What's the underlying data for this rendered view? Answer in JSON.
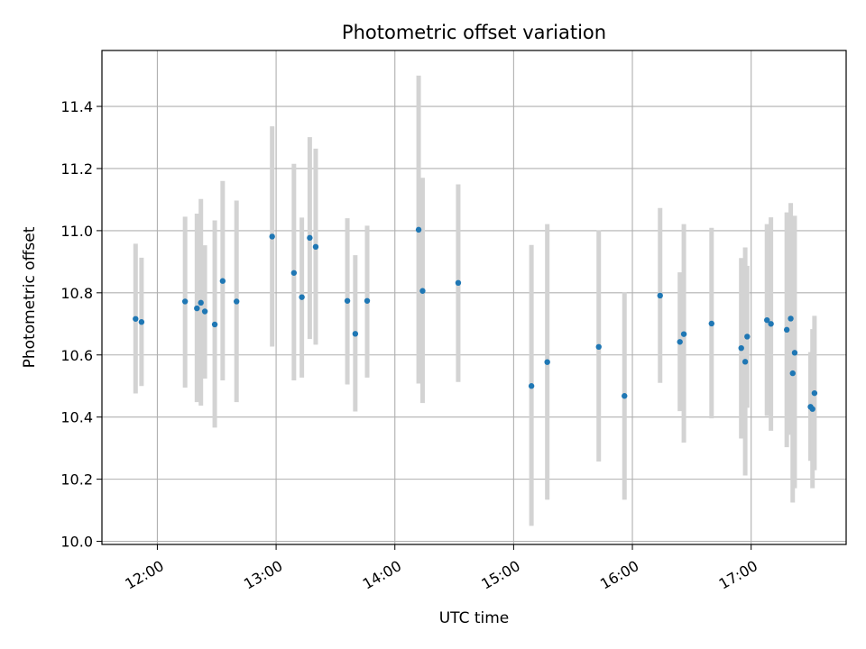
{
  "chart_data": {
    "type": "scatter",
    "title": "Photometric offset variation",
    "xlabel": "UTC time",
    "ylabel": "Photometric offset",
    "x_unit": "UTC time (HH:MM)",
    "xlim": [
      "11:32",
      "17:48"
    ],
    "ylim": [
      9.99,
      11.58
    ],
    "x_ticks": [
      "12:00",
      "13:00",
      "14:00",
      "15:00",
      "16:00",
      "17:00"
    ],
    "y_ticks": [
      10.0,
      10.2,
      10.4,
      10.6,
      10.8,
      11.0,
      11.2,
      11.4
    ],
    "grid": true,
    "legend": "none",
    "colors": {
      "points": "#1f77b4",
      "errorbars": "#d3d3d3",
      "grid": "#b0b0b0"
    },
    "points": [
      {
        "x": "11:49",
        "y": 10.716,
        "ylow": 10.476,
        "yhigh": 10.958
      },
      {
        "x": "11:52",
        "y": 10.706,
        "ylow": 10.5,
        "yhigh": 10.913
      },
      {
        "x": "12:14",
        "y": 10.772,
        "ylow": 10.495,
        "yhigh": 11.045
      },
      {
        "x": "12:20",
        "y": 10.75,
        "ylow": 10.448,
        "yhigh": 11.055
      },
      {
        "x": "12:22",
        "y": 10.768,
        "ylow": 10.437,
        "yhigh": 11.102
      },
      {
        "x": "12:24",
        "y": 10.74,
        "ylow": 10.524,
        "yhigh": 10.953
      },
      {
        "x": "12:29",
        "y": 10.698,
        "ylow": 10.366,
        "yhigh": 11.033
      },
      {
        "x": "12:33",
        "y": 10.838,
        "ylow": 10.518,
        "yhigh": 11.16
      },
      {
        "x": "12:40",
        "y": 10.772,
        "ylow": 10.448,
        "yhigh": 11.097
      },
      {
        "x": "12:58",
        "y": 10.981,
        "ylow": 10.627,
        "yhigh": 11.336
      },
      {
        "x": "13:09",
        "y": 10.864,
        "ylow": 10.518,
        "yhigh": 11.215
      },
      {
        "x": "13:13",
        "y": 10.786,
        "ylow": 10.527,
        "yhigh": 11.042
      },
      {
        "x": "13:17",
        "y": 10.977,
        "ylow": 10.651,
        "yhigh": 11.301
      },
      {
        "x": "13:20",
        "y": 10.948,
        "ylow": 10.633,
        "yhigh": 11.264
      },
      {
        "x": "13:36",
        "y": 10.774,
        "ylow": 10.505,
        "yhigh": 11.04
      },
      {
        "x": "13:40",
        "y": 10.668,
        "ylow": 10.418,
        "yhigh": 10.921
      },
      {
        "x": "13:46",
        "y": 10.774,
        "ylow": 10.527,
        "yhigh": 11.016
      },
      {
        "x": "14:12",
        "y": 11.003,
        "ylow": 10.508,
        "yhigh": 11.499
      },
      {
        "x": "14:14",
        "y": 10.806,
        "ylow": 10.445,
        "yhigh": 11.17
      },
      {
        "x": "14:32",
        "y": 10.832,
        "ylow": 10.513,
        "yhigh": 11.149
      },
      {
        "x": "15:09",
        "y": 10.5,
        "ylow": 10.05,
        "yhigh": 10.954
      },
      {
        "x": "15:17",
        "y": 10.577,
        "ylow": 10.134,
        "yhigh": 11.021
      },
      {
        "x": "15:43",
        "y": 10.626,
        "ylow": 10.257,
        "yhigh": 11.001
      },
      {
        "x": "15:56",
        "y": 10.468,
        "ylow": 10.134,
        "yhigh": 10.801
      },
      {
        "x": "16:14",
        "y": 10.791,
        "ylow": 10.51,
        "yhigh": 11.073
      },
      {
        "x": "16:24",
        "y": 10.642,
        "ylow": 10.419,
        "yhigh": 10.866
      },
      {
        "x": "16:26",
        "y": 10.667,
        "ylow": 10.318,
        "yhigh": 11.021
      },
      {
        "x": "16:40",
        "y": 10.701,
        "ylow": 10.396,
        "yhigh": 11.009
      },
      {
        "x": "16:55",
        "y": 10.622,
        "ylow": 10.331,
        "yhigh": 10.912
      },
      {
        "x": "16:57",
        "y": 10.578,
        "ylow": 10.212,
        "yhigh": 10.946
      },
      {
        "x": "16:58",
        "y": 10.659,
        "ylow": 10.43,
        "yhigh": 10.887
      },
      {
        "x": "17:08",
        "y": 10.712,
        "ylow": 10.404,
        "yhigh": 11.021
      },
      {
        "x": "17:10",
        "y": 10.7,
        "ylow": 10.356,
        "yhigh": 11.043
      },
      {
        "x": "17:18",
        "y": 10.681,
        "ylow": 10.303,
        "yhigh": 11.059
      },
      {
        "x": "17:20",
        "y": 10.717,
        "ylow": 10.343,
        "yhigh": 11.089
      },
      {
        "x": "17:21",
        "y": 10.541,
        "ylow": 10.125,
        "yhigh": 10.962
      },
      {
        "x": "17:22",
        "y": 10.607,
        "ylow": 10.171,
        "yhigh": 11.048
      },
      {
        "x": "17:30",
        "y": 10.433,
        "ylow": 10.259,
        "yhigh": 10.609
      },
      {
        "x": "17:31",
        "y": 10.426,
        "ylow": 10.171,
        "yhigh": 10.683
      },
      {
        "x": "17:32",
        "y": 10.477,
        "ylow": 10.229,
        "yhigh": 10.726
      }
    ]
  }
}
